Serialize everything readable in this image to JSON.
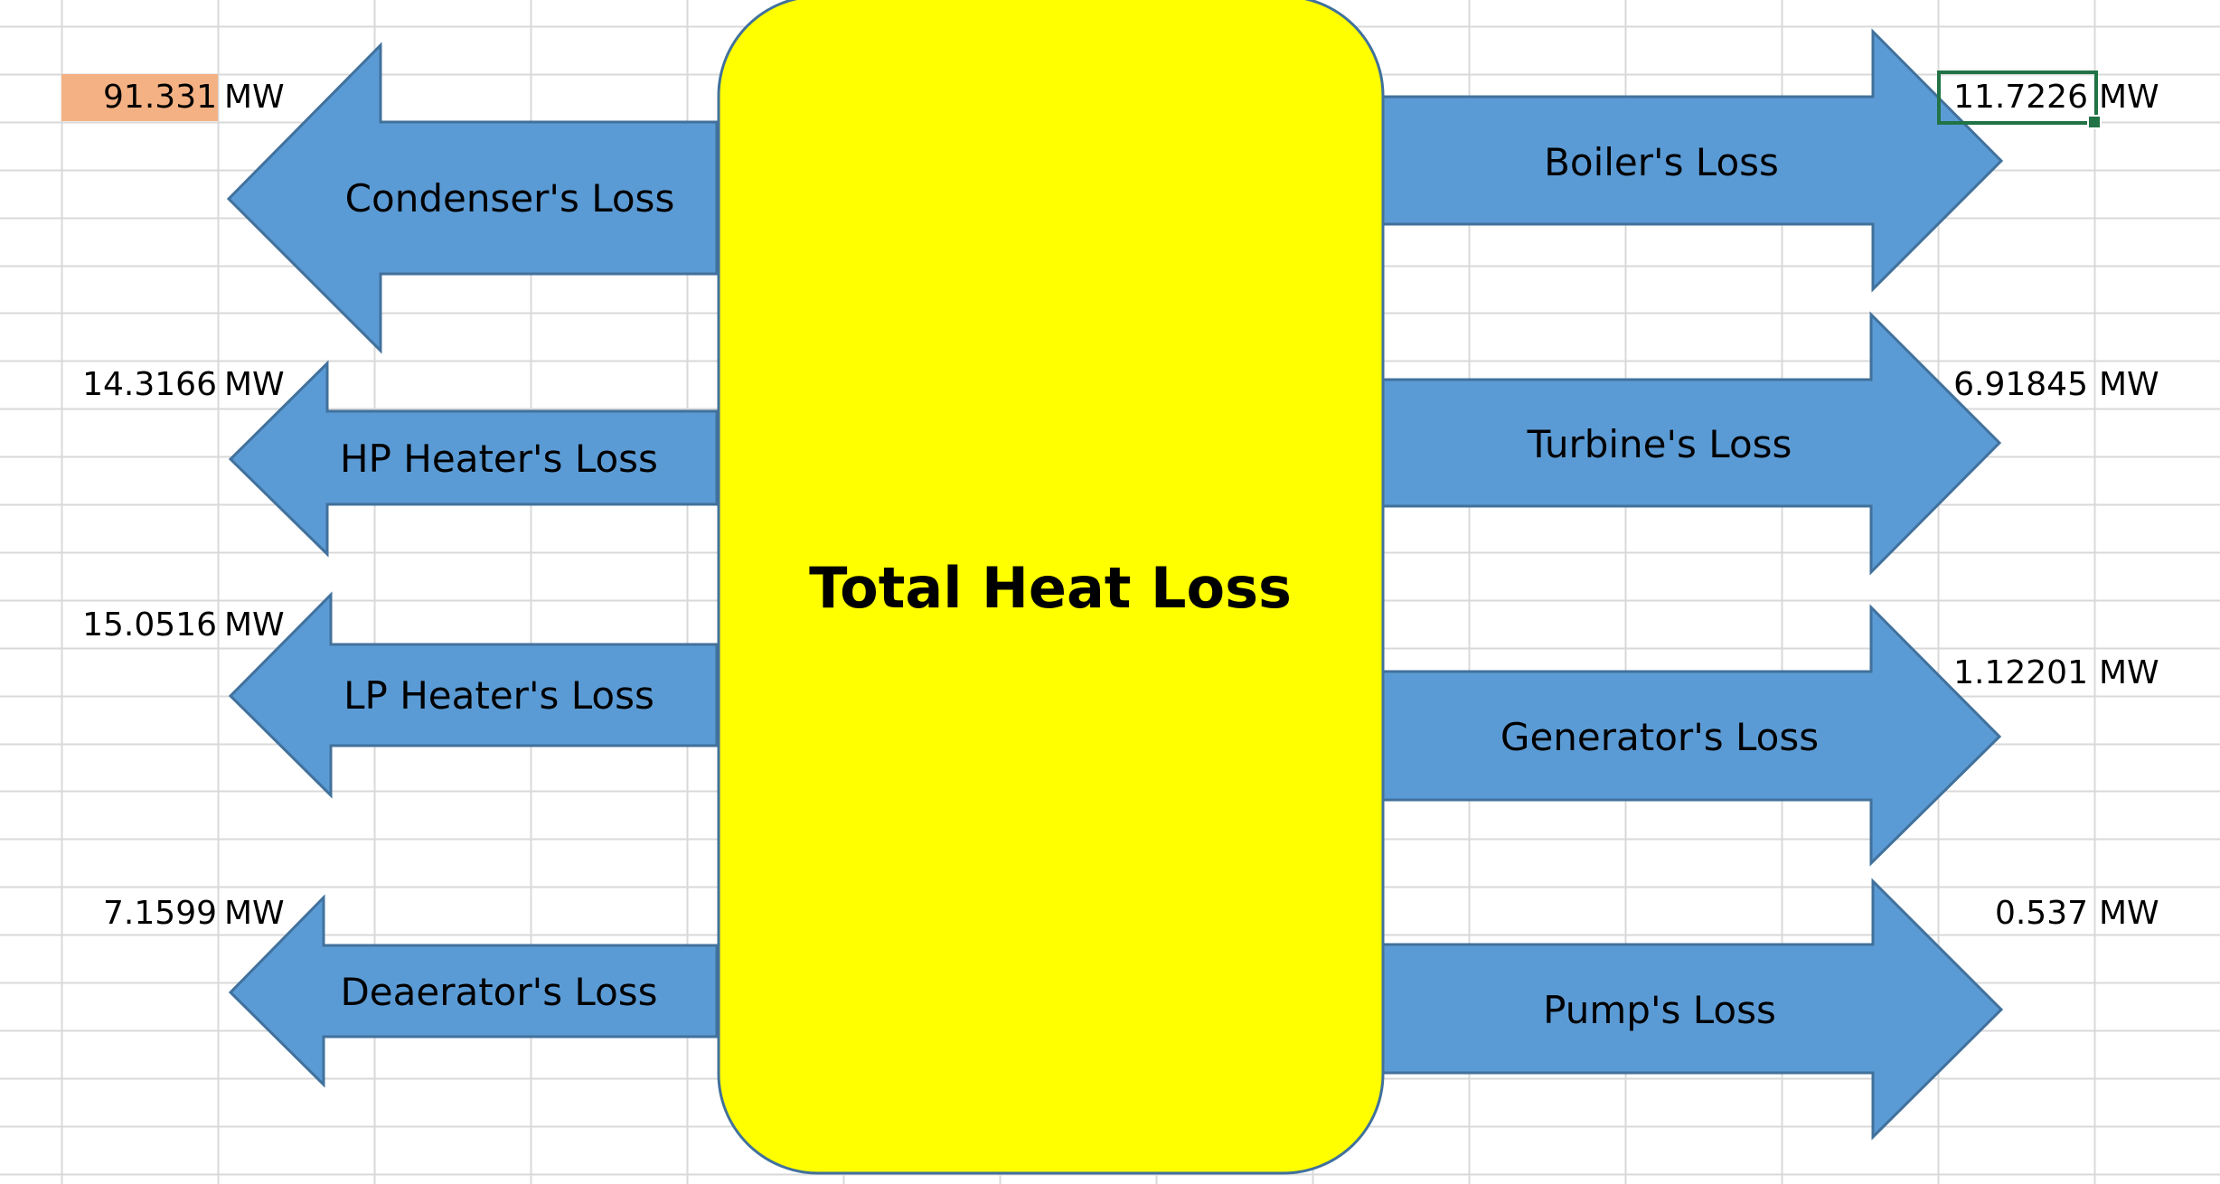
{
  "diagram": {
    "center_title": "Total Heat Loss",
    "unit": "MW",
    "left_losses": [
      {
        "label": "Condenser's Loss",
        "value": "91.331"
      },
      {
        "label": "HP Heater's Loss",
        "value": "14.3166"
      },
      {
        "label": "LP Heater's Loss",
        "value": "15.0516"
      },
      {
        "label": "Deaerator's Loss",
        "value": "7.1599"
      }
    ],
    "right_losses": [
      {
        "label": "Boiler's Loss",
        "value": "11.7226"
      },
      {
        "label": "Turbine's Loss",
        "value": "6.91845"
      },
      {
        "label": "Generator's Loss",
        "value": "1.12201"
      },
      {
        "label": "Pump's Loss",
        "value": "0.537"
      }
    ]
  },
  "colors": {
    "arrow_fill": "#5B9BD5",
    "arrow_stroke": "#41719C",
    "center_fill": "#FFFF00",
    "center_stroke": "#41719C",
    "highlight_cell": "#F4B183",
    "selection": "#217346",
    "gridline": "#D9D9D9"
  }
}
